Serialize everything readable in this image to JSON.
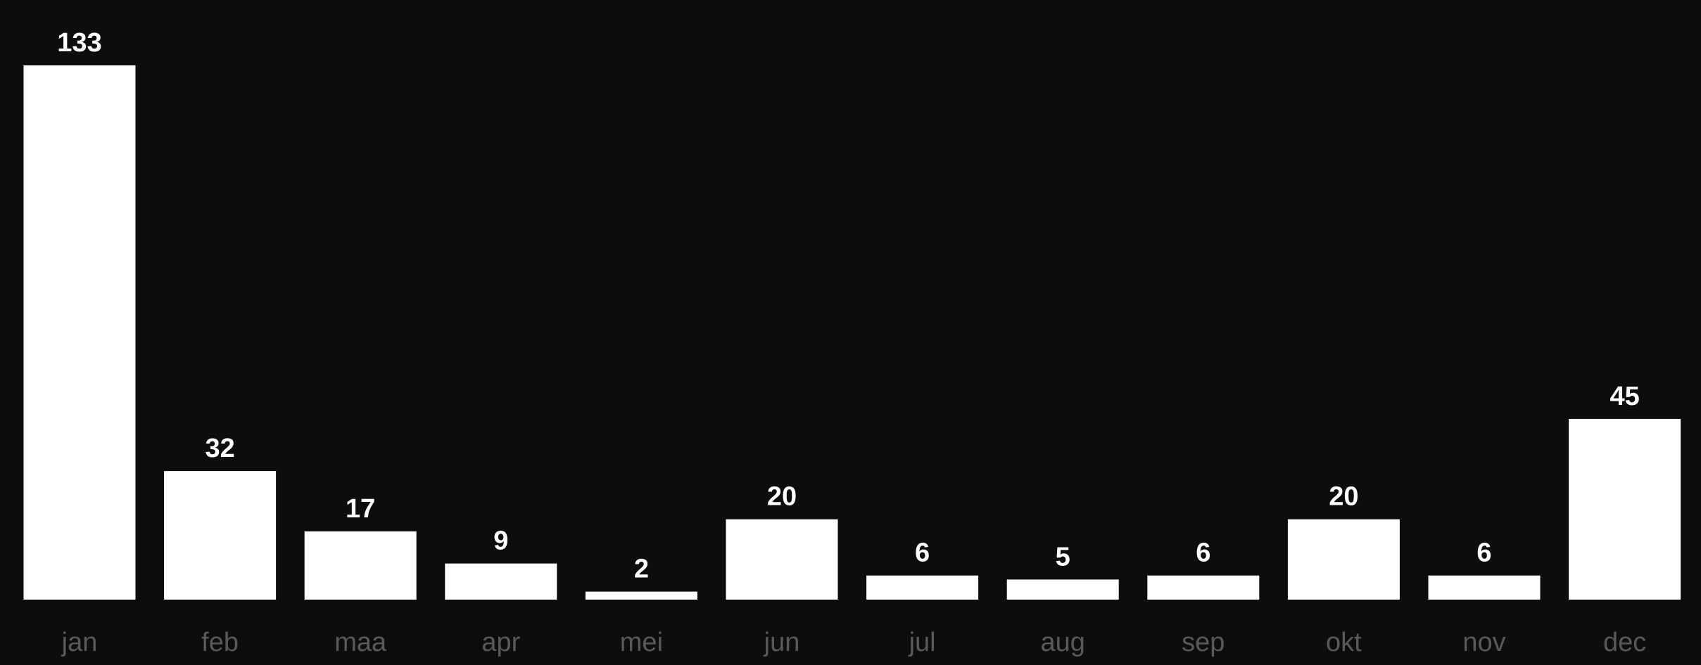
{
  "colors": {
    "background": "#0d0d0d",
    "bar": "#ffffff",
    "data_label": "#ffffff",
    "tick_label": "#595959"
  },
  "chart_data": {
    "type": "bar",
    "categories": [
      "jan",
      "feb",
      "maa",
      "apr",
      "mei",
      "jun",
      "jul",
      "aug",
      "sep",
      "okt",
      "nov",
      "dec"
    ],
    "values": [
      133,
      32,
      17,
      9,
      2,
      20,
      6,
      5,
      6,
      20,
      6,
      45
    ],
    "data_labels": [
      "133",
      "32",
      "17",
      "9",
      "2",
      "20",
      "6",
      "5",
      "6",
      "20",
      "6",
      "45"
    ],
    "title": "",
    "xlabel": "",
    "ylabel": "",
    "ylim": [
      0,
      133
    ],
    "grid": false,
    "legend": "none"
  }
}
